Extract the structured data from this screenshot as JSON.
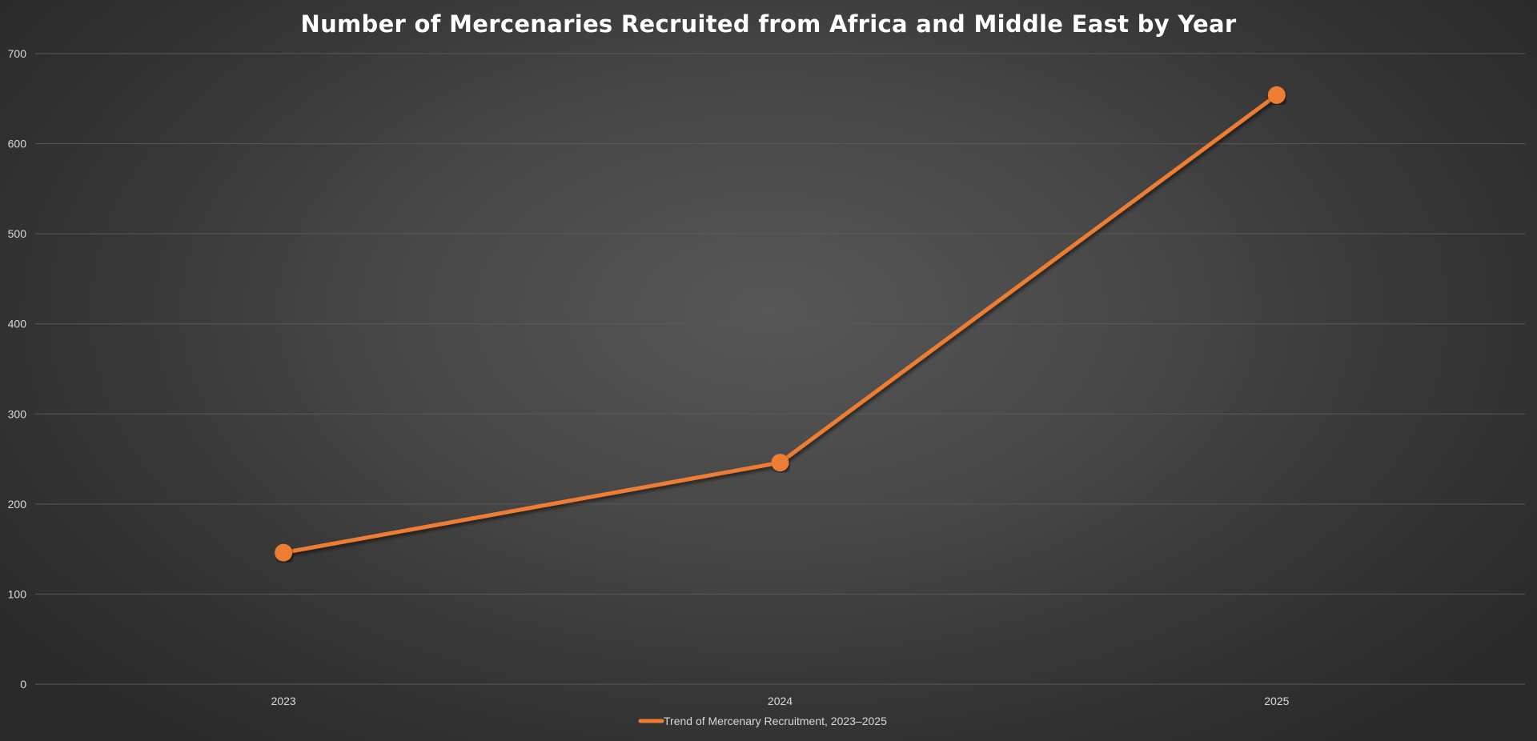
{
  "chart_data": {
    "type": "line",
    "title": "Number of Mercenaries Recruited from Africa and Middle East by Year",
    "xlabel": "",
    "ylabel": "",
    "categories": [
      "2023",
      "2024",
      "2025"
    ],
    "series": [
      {
        "name": "Trend of Mercenary Recruitment, 2023–2025",
        "values": [
          146,
          246,
          654
        ]
      }
    ],
    "ylim": [
      0,
      700
    ],
    "yticks": [
      "0",
      "100",
      "200",
      "300",
      "400",
      "500",
      "600",
      "700"
    ],
    "grid": true,
    "legend_position": "bottom",
    "colors": {
      "series": "#ed7d31",
      "gridline": "#5a5a5a",
      "text": "#d9d9d9",
      "title": "#ffffff"
    }
  }
}
